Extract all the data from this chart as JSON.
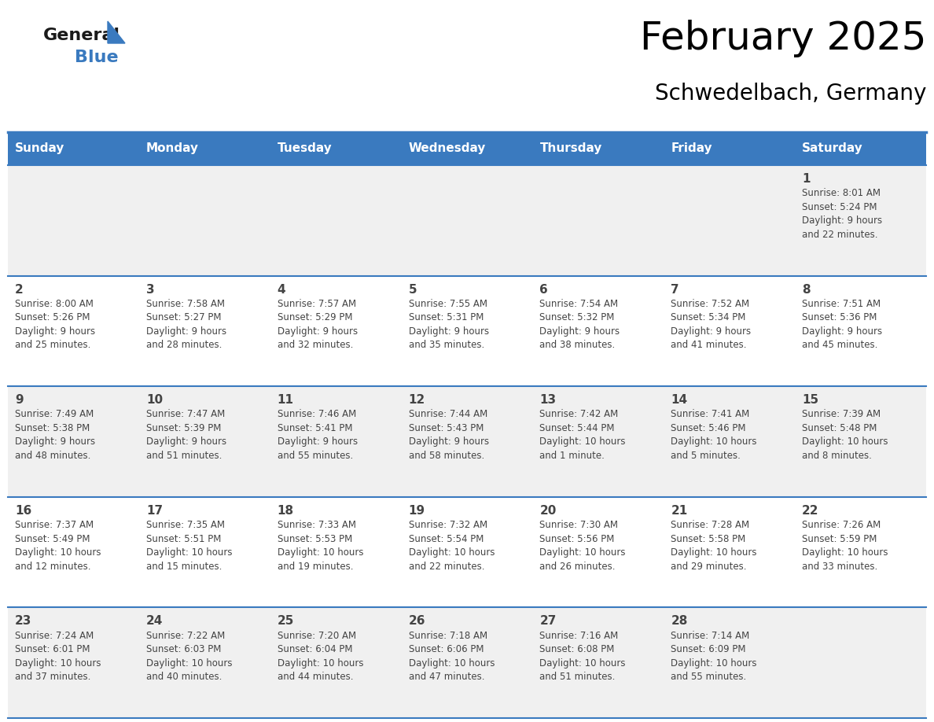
{
  "title": "February 2025",
  "subtitle": "Schwedelbach, Germany",
  "header_bg": "#3a7abf",
  "header_text_color": "#ffffff",
  "cell_bg_row0": "#f0f0f0",
  "cell_bg_row1": "#ffffff",
  "cell_bg_row2": "#f0f0f0",
  "cell_bg_row3": "#ffffff",
  "cell_bg_row4": "#f0f0f0",
  "separator_color": "#3a7abf",
  "text_color": "#444444",
  "day_headers": [
    "Sunday",
    "Monday",
    "Tuesday",
    "Wednesday",
    "Thursday",
    "Friday",
    "Saturday"
  ],
  "days": [
    {
      "day": 1,
      "col": 6,
      "row": 0,
      "sunrise": "8:01 AM",
      "sunset": "5:24 PM",
      "daylight": "9 hours and 22 minutes."
    },
    {
      "day": 2,
      "col": 0,
      "row": 1,
      "sunrise": "8:00 AM",
      "sunset": "5:26 PM",
      "daylight": "9 hours and 25 minutes."
    },
    {
      "day": 3,
      "col": 1,
      "row": 1,
      "sunrise": "7:58 AM",
      "sunset": "5:27 PM",
      "daylight": "9 hours and 28 minutes."
    },
    {
      "day": 4,
      "col": 2,
      "row": 1,
      "sunrise": "7:57 AM",
      "sunset": "5:29 PM",
      "daylight": "9 hours and 32 minutes."
    },
    {
      "day": 5,
      "col": 3,
      "row": 1,
      "sunrise": "7:55 AM",
      "sunset": "5:31 PM",
      "daylight": "9 hours and 35 minutes."
    },
    {
      "day": 6,
      "col": 4,
      "row": 1,
      "sunrise": "7:54 AM",
      "sunset": "5:32 PM",
      "daylight": "9 hours and 38 minutes."
    },
    {
      "day": 7,
      "col": 5,
      "row": 1,
      "sunrise": "7:52 AM",
      "sunset": "5:34 PM",
      "daylight": "9 hours and 41 minutes."
    },
    {
      "day": 8,
      "col": 6,
      "row": 1,
      "sunrise": "7:51 AM",
      "sunset": "5:36 PM",
      "daylight": "9 hours and 45 minutes."
    },
    {
      "day": 9,
      "col": 0,
      "row": 2,
      "sunrise": "7:49 AM",
      "sunset": "5:38 PM",
      "daylight": "9 hours and 48 minutes."
    },
    {
      "day": 10,
      "col": 1,
      "row": 2,
      "sunrise": "7:47 AM",
      "sunset": "5:39 PM",
      "daylight": "9 hours and 51 minutes."
    },
    {
      "day": 11,
      "col": 2,
      "row": 2,
      "sunrise": "7:46 AM",
      "sunset": "5:41 PM",
      "daylight": "9 hours and 55 minutes."
    },
    {
      "day": 12,
      "col": 3,
      "row": 2,
      "sunrise": "7:44 AM",
      "sunset": "5:43 PM",
      "daylight": "9 hours and 58 minutes."
    },
    {
      "day": 13,
      "col": 4,
      "row": 2,
      "sunrise": "7:42 AM",
      "sunset": "5:44 PM",
      "daylight": "10 hours and 1 minute."
    },
    {
      "day": 14,
      "col": 5,
      "row": 2,
      "sunrise": "7:41 AM",
      "sunset": "5:46 PM",
      "daylight": "10 hours and 5 minutes."
    },
    {
      "day": 15,
      "col": 6,
      "row": 2,
      "sunrise": "7:39 AM",
      "sunset": "5:48 PM",
      "daylight": "10 hours and 8 minutes."
    },
    {
      "day": 16,
      "col": 0,
      "row": 3,
      "sunrise": "7:37 AM",
      "sunset": "5:49 PM",
      "daylight": "10 hours and 12 minutes."
    },
    {
      "day": 17,
      "col": 1,
      "row": 3,
      "sunrise": "7:35 AM",
      "sunset": "5:51 PM",
      "daylight": "10 hours and 15 minutes."
    },
    {
      "day": 18,
      "col": 2,
      "row": 3,
      "sunrise": "7:33 AM",
      "sunset": "5:53 PM",
      "daylight": "10 hours and 19 minutes."
    },
    {
      "day": 19,
      "col": 3,
      "row": 3,
      "sunrise": "7:32 AM",
      "sunset": "5:54 PM",
      "daylight": "10 hours and 22 minutes."
    },
    {
      "day": 20,
      "col": 4,
      "row": 3,
      "sunrise": "7:30 AM",
      "sunset": "5:56 PM",
      "daylight": "10 hours and 26 minutes."
    },
    {
      "day": 21,
      "col": 5,
      "row": 3,
      "sunrise": "7:28 AM",
      "sunset": "5:58 PM",
      "daylight": "10 hours and 29 minutes."
    },
    {
      "day": 22,
      "col": 6,
      "row": 3,
      "sunrise": "7:26 AM",
      "sunset": "5:59 PM",
      "daylight": "10 hours and 33 minutes."
    },
    {
      "day": 23,
      "col": 0,
      "row": 4,
      "sunrise": "7:24 AM",
      "sunset": "6:01 PM",
      "daylight": "10 hours and 37 minutes."
    },
    {
      "day": 24,
      "col": 1,
      "row": 4,
      "sunrise": "7:22 AM",
      "sunset": "6:03 PM",
      "daylight": "10 hours and 40 minutes."
    },
    {
      "day": 25,
      "col": 2,
      "row": 4,
      "sunrise": "7:20 AM",
      "sunset": "6:04 PM",
      "daylight": "10 hours and 44 minutes."
    },
    {
      "day": 26,
      "col": 3,
      "row": 4,
      "sunrise": "7:18 AM",
      "sunset": "6:06 PM",
      "daylight": "10 hours and 47 minutes."
    },
    {
      "day": 27,
      "col": 4,
      "row": 4,
      "sunrise": "7:16 AM",
      "sunset": "6:08 PM",
      "daylight": "10 hours and 51 minutes."
    },
    {
      "day": 28,
      "col": 5,
      "row": 4,
      "sunrise": "7:14 AM",
      "sunset": "6:09 PM",
      "daylight": "10 hours and 55 minutes."
    }
  ],
  "num_rows": 5,
  "num_cols": 7,
  "title_fontsize": 36,
  "subtitle_fontsize": 20,
  "day_header_fontsize": 11,
  "day_num_fontsize": 11,
  "cell_text_fontsize": 8.5
}
